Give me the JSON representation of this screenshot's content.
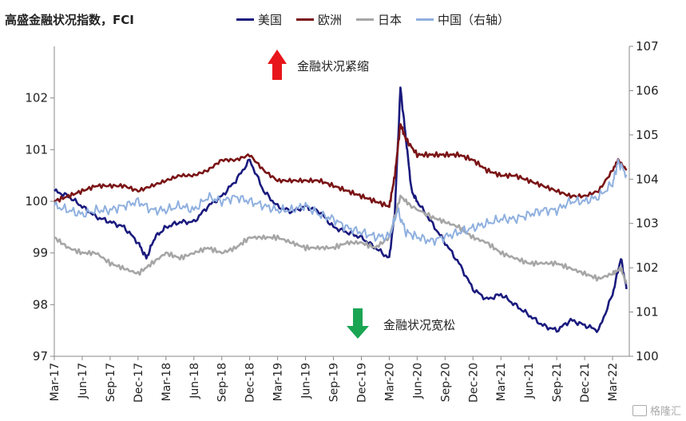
{
  "title": "高盛金融状况指数，FCI",
  "legend": [
    {
      "label": "美国",
      "color": "#1a1a7e"
    },
    {
      "label": "欧洲",
      "color": "#7a1416"
    },
    {
      "label": "日本",
      "color": "#a6a6a6"
    },
    {
      "label": "中国（右轴）",
      "color": "#8fb0df"
    }
  ],
  "annotations": {
    "tighten": "金融状况紧缩",
    "loosen": "金融状况宽松",
    "tighten_color": "#e8161a",
    "loosen_color": "#1aa553"
  },
  "watermark": "格隆汇",
  "chart_data": {
    "type": "line",
    "title": "高盛金融状况指数，FCI",
    "x_ticks": [
      "Mar-17",
      "Jun-17",
      "Sep-17",
      "Dec-17",
      "Mar-18",
      "Jun-18",
      "Sep-18",
      "Dec-18",
      "Mar-19",
      "Jun-19",
      "Sep-19",
      "Dec-19",
      "Mar-20",
      "Jun-20",
      "Sep-20",
      "Dec-20",
      "Mar-21",
      "Jun-21",
      "Sep-21",
      "Dec-21",
      "Mar-22"
    ],
    "y_left": {
      "min": 97,
      "max": 103,
      "ticks": [
        97,
        98,
        99,
        100,
        101,
        102
      ]
    },
    "y_right": {
      "min": 100,
      "max": 107,
      "ticks": [
        100,
        101,
        102,
        103,
        104,
        105,
        106,
        107
      ]
    },
    "series": [
      {
        "name": "美国",
        "axis": "left",
        "color": "#1a1a7e",
        "points": [
          [
            0,
            100.2
          ],
          [
            0.5,
            100.1
          ],
          [
            1,
            99.9
          ],
          [
            1.5,
            99.7
          ],
          [
            2,
            99.6
          ],
          [
            2.5,
            99.5
          ],
          [
            3,
            99.2
          ],
          [
            3.3,
            98.9
          ],
          [
            3.6,
            99.3
          ],
          [
            4,
            99.5
          ],
          [
            4.5,
            99.6
          ],
          [
            5,
            99.6
          ],
          [
            5.5,
            99.9
          ],
          [
            6,
            100.1
          ],
          [
            6.5,
            100.4
          ],
          [
            7,
            100.8
          ],
          [
            7.5,
            100.2
          ],
          [
            8,
            99.9
          ],
          [
            8.5,
            99.8
          ],
          [
            9,
            99.9
          ],
          [
            9.5,
            99.8
          ],
          [
            10,
            99.5
          ],
          [
            10.5,
            99.4
          ],
          [
            11,
            99.3
          ],
          [
            11.5,
            99.1
          ],
          [
            12,
            98.9
          ],
          [
            12.2,
            99.8
          ],
          [
            12.4,
            102.2
          ],
          [
            12.6,
            101.2
          ],
          [
            12.8,
            100.2
          ],
          [
            13,
            100.0
          ],
          [
            13.5,
            99.6
          ],
          [
            14,
            99.2
          ],
          [
            14.5,
            98.8
          ],
          [
            15,
            98.3
          ],
          [
            15.5,
            98.1
          ],
          [
            16,
            98.2
          ],
          [
            16.5,
            98.0
          ],
          [
            17,
            97.8
          ],
          [
            17.5,
            97.6
          ],
          [
            18,
            97.5
          ],
          [
            18.5,
            97.7
          ],
          [
            19,
            97.6
          ],
          [
            19.5,
            97.5
          ],
          [
            20,
            98.2
          ],
          [
            20.3,
            98.9
          ],
          [
            20.5,
            98.3
          ]
        ]
      },
      {
        "name": "欧洲",
        "axis": "left",
        "color": "#7a1416",
        "points": [
          [
            0,
            100.0
          ],
          [
            0.5,
            100.1
          ],
          [
            1,
            100.2
          ],
          [
            1.5,
            100.3
          ],
          [
            2,
            100.3
          ],
          [
            2.5,
            100.3
          ],
          [
            3,
            100.2
          ],
          [
            3.5,
            100.3
          ],
          [
            4,
            100.4
          ],
          [
            4.5,
            100.5
          ],
          [
            5,
            100.5
          ],
          [
            5.5,
            100.6
          ],
          [
            6,
            100.8
          ],
          [
            6.5,
            100.8
          ],
          [
            7,
            100.9
          ],
          [
            7.5,
            100.6
          ],
          [
            8,
            100.4
          ],
          [
            8.5,
            100.4
          ],
          [
            9,
            100.4
          ],
          [
            9.5,
            100.4
          ],
          [
            10,
            100.3
          ],
          [
            10.5,
            100.2
          ],
          [
            11,
            100.1
          ],
          [
            11.5,
            100.0
          ],
          [
            12,
            99.9
          ],
          [
            12.2,
            100.5
          ],
          [
            12.4,
            101.5
          ],
          [
            12.6,
            101.2
          ],
          [
            13,
            100.9
          ],
          [
            13.5,
            100.9
          ],
          [
            14,
            100.9
          ],
          [
            14.5,
            100.9
          ],
          [
            15,
            100.8
          ],
          [
            15.5,
            100.6
          ],
          [
            16,
            100.5
          ],
          [
            16.5,
            100.5
          ],
          [
            17,
            100.4
          ],
          [
            17.5,
            100.3
          ],
          [
            18,
            100.2
          ],
          [
            18.5,
            100.1
          ],
          [
            19,
            100.1
          ],
          [
            19.5,
            100.2
          ],
          [
            20,
            100.6
          ],
          [
            20.2,
            100.8
          ],
          [
            20.5,
            100.6
          ]
        ]
      },
      {
        "name": "日本",
        "axis": "left",
        "color": "#a6a6a6",
        "points": [
          [
            0,
            99.3
          ],
          [
            0.5,
            99.1
          ],
          [
            1,
            99.0
          ],
          [
            1.5,
            99.0
          ],
          [
            2,
            98.8
          ],
          [
            2.5,
            98.7
          ],
          [
            3,
            98.6
          ],
          [
            3.5,
            98.8
          ],
          [
            4,
            99.0
          ],
          [
            4.5,
            98.9
          ],
          [
            5,
            99.0
          ],
          [
            5.5,
            99.1
          ],
          [
            6,
            99.0
          ],
          [
            6.5,
            99.1
          ],
          [
            7,
            99.3
          ],
          [
            7.5,
            99.3
          ],
          [
            8,
            99.3
          ],
          [
            8.5,
            99.2
          ],
          [
            9,
            99.1
          ],
          [
            9.5,
            99.1
          ],
          [
            10,
            99.1
          ],
          [
            10.5,
            99.2
          ],
          [
            11,
            99.2
          ],
          [
            11.5,
            99.1
          ],
          [
            12,
            99.3
          ],
          [
            12.4,
            100.1
          ],
          [
            12.8,
            99.9
          ],
          [
            13.5,
            99.7
          ],
          [
            14,
            99.6
          ],
          [
            14.5,
            99.5
          ],
          [
            15,
            99.3
          ],
          [
            15.5,
            99.2
          ],
          [
            16,
            99.0
          ],
          [
            16.5,
            98.9
          ],
          [
            17,
            98.8
          ],
          [
            17.5,
            98.8
          ],
          [
            18,
            98.8
          ],
          [
            18.5,
            98.7
          ],
          [
            19,
            98.6
          ],
          [
            19.5,
            98.5
          ],
          [
            20,
            98.6
          ],
          [
            20.3,
            98.7
          ],
          [
            20.5,
            98.4
          ]
        ]
      },
      {
        "name": "中国（右轴）",
        "axis": "right",
        "color": "#8fb0df",
        "points": [
          [
            0,
            103.4
          ],
          [
            0.5,
            103.3
          ],
          [
            1,
            103.2
          ],
          [
            1.5,
            103.3
          ],
          [
            2,
            103.3
          ],
          [
            2.5,
            103.4
          ],
          [
            3,
            103.5
          ],
          [
            3.5,
            103.3
          ],
          [
            4,
            103.3
          ],
          [
            4.5,
            103.4
          ],
          [
            5,
            103.3
          ],
          [
            5.5,
            103.6
          ],
          [
            6,
            103.5
          ],
          [
            6.5,
            103.6
          ],
          [
            7,
            103.5
          ],
          [
            7.5,
            103.4
          ],
          [
            8,
            103.3
          ],
          [
            8.5,
            103.3
          ],
          [
            9,
            103.4
          ],
          [
            9.5,
            103.2
          ],
          [
            10,
            103.1
          ],
          [
            10.5,
            102.9
          ],
          [
            11,
            102.8
          ],
          [
            11.5,
            102.7
          ],
          [
            12,
            102.7
          ],
          [
            12.3,
            103.3
          ],
          [
            12.6,
            102.8
          ],
          [
            13,
            102.7
          ],
          [
            13.5,
            102.6
          ],
          [
            14,
            102.7
          ],
          [
            14.5,
            102.8
          ],
          [
            15,
            102.9
          ],
          [
            15.5,
            103.0
          ],
          [
            16,
            103.1
          ],
          [
            16.5,
            103.1
          ],
          [
            17,
            103.2
          ],
          [
            17.5,
            103.3
          ],
          [
            18,
            103.3
          ],
          [
            18.5,
            103.5
          ],
          [
            19,
            103.5
          ],
          [
            19.5,
            103.6
          ],
          [
            20,
            103.9
          ],
          [
            20.2,
            104.4
          ],
          [
            20.5,
            104.1
          ]
        ]
      }
    ]
  }
}
